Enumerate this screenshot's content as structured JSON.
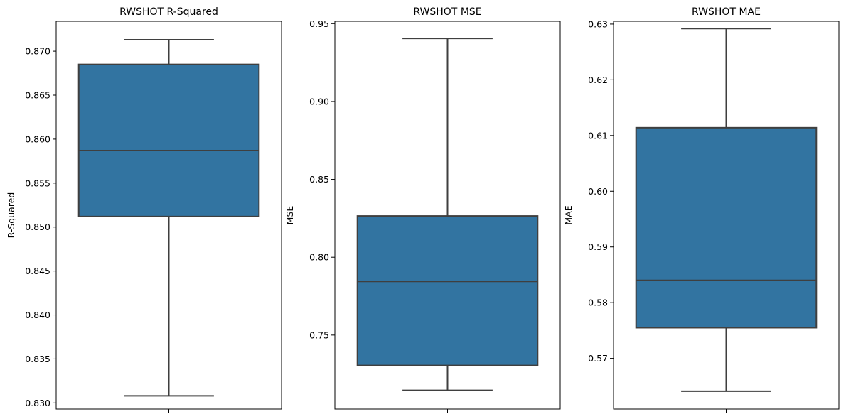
{
  "chart_data": [
    {
      "type": "box",
      "title": "RWSHOT R-Squared",
      "xlabel": "",
      "ylabel": "R-Squared",
      "ylim": [
        0.8293,
        0.8734
      ],
      "yticks": [
        "0.830",
        "0.835",
        "0.840",
        "0.845",
        "0.850",
        "0.855",
        "0.860",
        "0.865",
        "0.870"
      ],
      "box": {
        "whisker_low": 0.8308,
        "q1": 0.8512,
        "median": 0.8587,
        "q3": 0.8685,
        "whisker_high": 0.8713
      },
      "color": "#3274a1"
    },
    {
      "type": "box",
      "title": "RWSHOT MSE",
      "xlabel": "",
      "ylabel": "MSE",
      "ylim": [
        0.7025,
        0.9515
      ],
      "yticks": [
        "0.75",
        "0.80",
        "0.85",
        "0.90",
        "0.95"
      ],
      "box": {
        "whisker_low": 0.7145,
        "q1": 0.7305,
        "median": 0.7845,
        "q3": 0.8265,
        "whisker_high": 0.9405
      },
      "color": "#3274a1"
    },
    {
      "type": "box",
      "title": "RWSHOT MAE",
      "xlabel": "",
      "ylabel": "MAE",
      "ylim": [
        0.5609,
        0.6305
      ],
      "yticks": [
        "0.57",
        "0.58",
        "0.59",
        "0.60",
        "0.61",
        "0.62",
        "0.63"
      ],
      "box": {
        "whisker_low": 0.5641,
        "q1": 0.5755,
        "median": 0.584,
        "q3": 0.6114,
        "whisker_high": 0.6292
      },
      "color": "#3274a1"
    }
  ]
}
